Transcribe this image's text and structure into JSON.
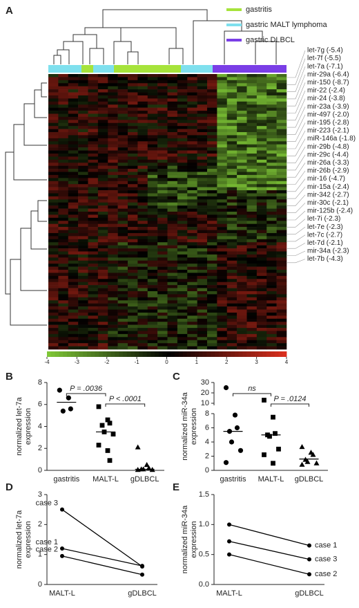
{
  "chart_data": [
    {
      "type": "heatmap",
      "panel": "A",
      "legend": [
        {
          "name": "gastritis",
          "color": "#a6e33b"
        },
        {
          "name": "gastric MALT lymphoma",
          "color": "#7fe0ee"
        },
        {
          "name": "gastric DLBCL",
          "color": "#7a3ee6"
        }
      ],
      "row_labels": [
        "let-7g (-5.4)",
        "let-7f (-5.5)",
        "let-7a (-7.1)",
        "mir-29a (-6.4)",
        "mir-150 (-8.7)",
        "mir-22 (-2.4)",
        "mir-24 (-3.8)",
        "mir-23a (-3.9)",
        "mir-497 (-2.0)",
        "mir-195 (-2.8)",
        "mir-223 (-2.1)",
        "miR-146a (-1.8)",
        "mir-29b (-4.8)",
        "mir-29c (-4.4)",
        "mir-26a (-3.3)",
        "mir-26b (-2.9)",
        "mir-16 (-4.7)",
        "mir-15a (-2.4)",
        "mir-342 (-2.7)",
        "mir-30c (-2.1)",
        "mir-125b (-2.4)",
        "let-7i (-2.3)",
        "let-7e (-2.3)",
        "let-7c (-2.7)",
        "let-7d (-2.1)",
        "mir-34a (-2.3)",
        "let-7b (-4.3)"
      ],
      "colorbar_ticks": [
        -4,
        -3,
        -2,
        -1,
        0,
        1,
        2,
        3,
        4
      ],
      "colorscale": [
        "#7ec636",
        "#000000",
        "#e0301e"
      ]
    },
    {
      "type": "dotplot",
      "panel": "B",
      "ylabel": [
        "normalized let-7a",
        "expression"
      ],
      "ylim": [
        0,
        8
      ],
      "yticks": [
        0,
        2,
        4,
        6,
        8
      ],
      "annotations": [
        "P = .0036",
        "P < .0001"
      ],
      "series": [
        {
          "name": "gastritis",
          "marker": "circle",
          "color": "#000000",
          "values": [
            7.3,
            6.6,
            5.6,
            5.4
          ],
          "median": 6.2
        },
        {
          "name": "MALT-L",
          "marker": "square",
          "color": "#000000",
          "values": [
            5.8,
            4.6,
            4.3,
            4.1,
            3.5,
            3.3,
            2.3,
            1.8,
            0.9
          ],
          "median": 3.5
        },
        {
          "name": "gDLBCL",
          "marker": "triangle",
          "color": "#000000",
          "values": [
            2.1,
            0.5,
            0.2,
            0.1,
            0.1,
            0.05,
            0.05
          ],
          "median": 0.1
        }
      ]
    },
    {
      "type": "dotplot",
      "panel": "C",
      "ylabel": [
        "normalized miR-34a",
        "expression"
      ],
      "ylim": [
        0,
        8
      ],
      "yticks": [
        0,
        2,
        4,
        6,
        8
      ],
      "break": {
        "ylim": [
          8,
          30
        ],
        "yticks": [
          10,
          20,
          30
        ]
      },
      "annotations": [
        "ns",
        "P = .0124"
      ],
      "series": [
        {
          "name": "gastritis",
          "marker": "circle",
          "color": "#000000",
          "values": [
            25,
            7.8,
            6,
            5.5,
            4,
            2.8,
            1.1
          ],
          "median": 5.5
        },
        {
          "name": "MALT-L",
          "marker": "square",
          "color": "#000000",
          "values": [
            13,
            7.5,
            5.2,
            5,
            4.8,
            3,
            2.2,
            1
          ],
          "median": 5
        },
        {
          "name": "gDLBCL",
          "marker": "triangle",
          "color": "#000000",
          "values": [
            3.3,
            2.5,
            2.2,
            1.5,
            1.2,
            1.0,
            0.8
          ],
          "median": 1.6
        }
      ]
    },
    {
      "type": "paired",
      "panel": "D",
      "ylabel": [
        "normalized let-7a",
        "expression"
      ],
      "categories": [
        "MALT-L",
        "gDLBCL"
      ],
      "ylim": [
        0,
        3
      ],
      "yticks": [
        0,
        1,
        2,
        3
      ],
      "label_side": "left",
      "series": [
        {
          "name": "case 3",
          "color": "#000000",
          "values": [
            2.5,
            0.6
          ]
        },
        {
          "name": "case 1",
          "color": "#000000",
          "values": [
            1.2,
            0.62
          ]
        },
        {
          "name": "case 2",
          "color": "#000000",
          "values": [
            0.95,
            0.33
          ]
        }
      ]
    },
    {
      "type": "paired",
      "panel": "E",
      "ylabel": [
        "normalized miR-34a",
        "expression"
      ],
      "categories": [
        "MALT-L",
        "gDLBCL"
      ],
      "ylim": [
        0,
        1.5
      ],
      "yticks": [
        {
          "value": 0,
          "label": "0.0"
        },
        0.5,
        {
          "value": 1,
          "label": "1.0"
        },
        1.5
      ],
      "label_side": "right",
      "series": [
        {
          "name": "case 1",
          "color": "#000000",
          "values": [
            1.0,
            0.65
          ]
        },
        {
          "name": "case 3",
          "color": "#000000",
          "values": [
            0.72,
            0.42
          ]
        },
        {
          "name": "case 2",
          "color": "#000000",
          "values": [
            0.5,
            0.17
          ]
        }
      ]
    }
  ]
}
